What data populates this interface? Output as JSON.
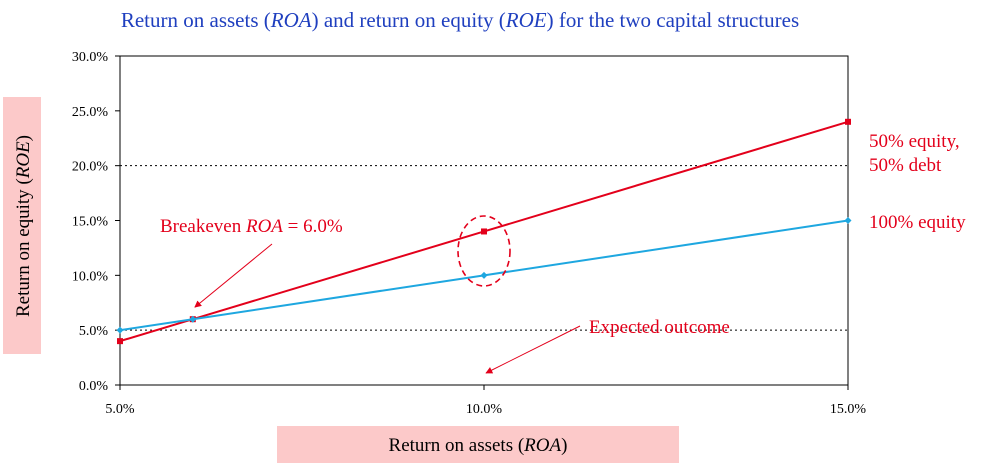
{
  "chart_data": {
    "type": "line",
    "title_parts": [
      {
        "text": "Return on assets (",
        "italic": false
      },
      {
        "text": "ROA",
        "italic": true
      },
      {
        "text": ") and return on equity (",
        "italic": false
      },
      {
        "text": "ROE",
        "italic": true
      },
      {
        "text": ") for the two capital structures",
        "italic": false
      }
    ],
    "xlabel_parts": [
      {
        "text": "Return on assets (",
        "italic": false
      },
      {
        "text": "ROA",
        "italic": true
      },
      {
        "text": ")",
        "italic": false
      }
    ],
    "ylabel_parts": [
      {
        "text": "Return on equity (",
        "italic": false
      },
      {
        "text": "ROE",
        "italic": true
      },
      {
        "text": ")",
        "italic": false
      }
    ],
    "xlim": [
      0.05,
      0.15
    ],
    "ylim": [
      0,
      0.3
    ],
    "x_ticks": [
      0.05,
      0.1,
      0.15
    ],
    "x_tick_labels": [
      "5.0%",
      "10.0%",
      "15.0%"
    ],
    "y_ticks": [
      0,
      0.05,
      0.1,
      0.15,
      0.2,
      0.25,
      0.3
    ],
    "y_tick_labels": [
      "0.0%",
      "5.0%",
      "10.0%",
      "15.0%",
      "20.0%",
      "25.0%",
      "30.0%"
    ],
    "gridlines_dotted_at": [
      0.05,
      0.2
    ],
    "series": [
      {
        "label_lines": [
          "50% equity,",
          "50% debt"
        ],
        "color": "#e3001b",
        "marker": "square",
        "x": [
          0.05,
          0.06,
          0.1,
          0.15
        ],
        "y": [
          0.04,
          0.06,
          0.14,
          0.24
        ]
      },
      {
        "label_lines": [
          "100% equity"
        ],
        "color": "#1ea7e0",
        "marker": "diamond",
        "x": [
          0.05,
          0.06,
          0.1,
          0.15
        ],
        "y": [
          0.05,
          0.06,
          0.1,
          0.15
        ]
      }
    ],
    "annotations": {
      "breakeven": {
        "parts": [
          {
            "text": "Breakeven ",
            "italic": false
          },
          {
            "text": "ROA",
            "italic": true
          },
          {
            "text": " = 6.0%",
            "italic": false
          }
        ],
        "target": [
          0.06,
          0.06
        ]
      },
      "expected": {
        "text": "Expected outcome",
        "target_x": 0.1
      }
    },
    "colors": {
      "axis_label_background": "#fcc9c9",
      "title": "#1f3fbf",
      "annotation": "#e3001b",
      "red_series": "#e3001b",
      "blue_series": "#1ea7e0"
    }
  }
}
